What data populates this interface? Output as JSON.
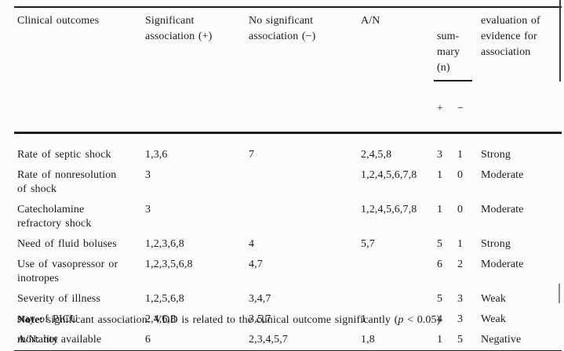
{
  "table": {
    "header": {
      "clinical_outcomes": "Clinical outcomes",
      "significant": "Significant\nassociation (+)",
      "no_significant": "No significant\nassociation (−)",
      "an": "A/N",
      "summary": "sum-\nmary\n(n)",
      "summary_plus": "+",
      "summary_minus": "−",
      "evaluation": "evaluation of\nevidence for\nassociation"
    },
    "rows": [
      {
        "outcome": "Rate of septic shock",
        "significant": "1,3,6",
        "no_significant": "7",
        "an": "2,4,5,8",
        "plus": "3",
        "minus": "1",
        "evaluation": "Strong"
      },
      {
        "outcome": "Rate of nonresolution\nof shock",
        "significant": "3",
        "no_significant": "",
        "an": "1,2,4,5,6,7,8",
        "plus": "1",
        "minus": "0",
        "evaluation": "Moderate"
      },
      {
        "outcome": "Catecholamine\nrefractory shock",
        "significant": "3",
        "no_significant": "",
        "an": "1,2,4,5,6,7,8",
        "plus": "1",
        "minus": "0",
        "evaluation": "Moderate"
      },
      {
        "outcome": "Need of fluid boluses",
        "significant": "1,2,3,6,8",
        "no_significant": "4",
        "an": "5,7",
        "plus": "5",
        "minus": "1",
        "evaluation": "Strong"
      },
      {
        "outcome": "Use of vasopressor or\ninotropes",
        "significant": "1,2,3,5,6,8",
        "no_significant": "4,7",
        "an": "",
        "plus": "6",
        "minus": "2",
        "evaluation": "Moderate"
      },
      {
        "outcome": "Severity of illness",
        "significant": "1,2,5,6,8",
        "no_significant": "3,4,7",
        "an": "",
        "plus": "5",
        "minus": "3",
        "evaluation": "Weak"
      },
      {
        "outcome": "stay of PICU",
        "significant": "2,4,6,8",
        "no_significant": "3,5,7",
        "an": "1",
        "plus": "4",
        "minus": "3",
        "evaluation": "Weak"
      },
      {
        "outcome": "mortality",
        "significant": "6",
        "no_significant": "2,3,4,5,7",
        "an": "1,8",
        "plus": "1",
        "minus": "5",
        "evaluation": "Negative"
      }
    ],
    "notes": {
      "label": "Note:",
      "text_before_p": " significant association: VDD is related to the clinical outcome significantly (",
      "p": "p",
      "text_after_p": " < 0.05)",
      "line2": "A/N: not available"
    },
    "colors": {
      "text": "#1b1b1b",
      "rule": "#1e1e1e",
      "background": "#fcfcfc"
    }
  }
}
